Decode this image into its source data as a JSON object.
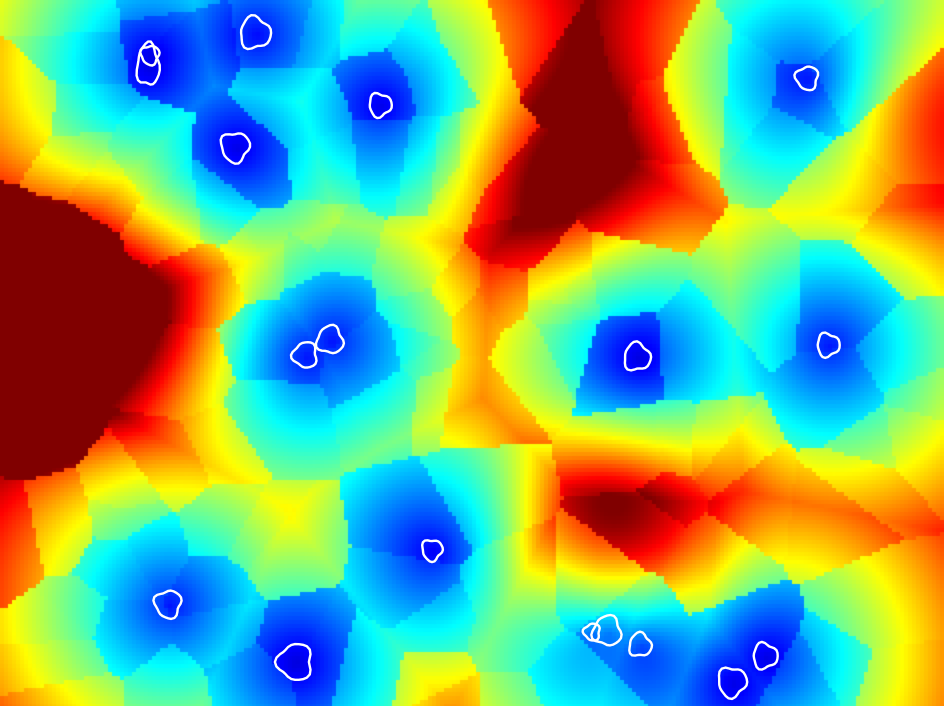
{
  "image": {
    "description_type": "distance-transform heatmap with watershed regions and white cell contours",
    "colormap": [
      "#00008f",
      "#0000ff",
      "#0080ff",
      "#00ffff",
      "#80ff80",
      "#ffff00",
      "#ff8000",
      "#ff0000",
      "#800000"
    ],
    "contour_color": "#ffffff",
    "cell_count": 20
  }
}
